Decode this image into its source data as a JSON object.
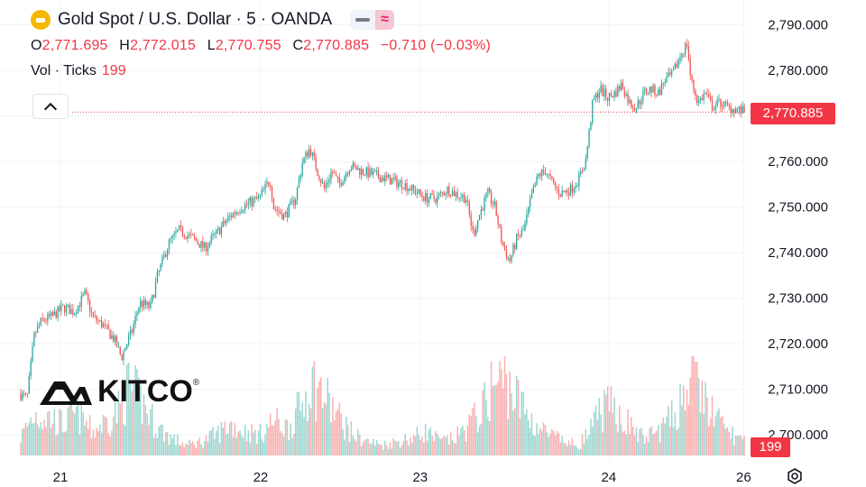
{
  "header": {
    "title": "Gold Spot / U.S. Dollar · 5 · OANDA",
    "ohlc": {
      "o_label": "O",
      "o": "2,771.695",
      "h_label": "H",
      "h": "2,772.015",
      "l_label": "L",
      "l": "2,770.755",
      "c_label": "C",
      "c": "2,770.885",
      "change": "−0.710 (−0.03%)"
    },
    "volume_label": "Vol · Ticks",
    "volume_value": "199"
  },
  "logo": {
    "text": "KITCO",
    "mark": "®"
  },
  "price_tag": "2,770.885",
  "volume_tag": "199",
  "colors": {
    "up": "#26a69a",
    "down": "#ef5350",
    "grid": "#f0f3fa",
    "last": "#f23645"
  },
  "chart_data": {
    "type": "candlestick",
    "title": "Gold Spot / U.S. Dollar · 5 · OANDA",
    "interval": "5 min",
    "ylim": [
      2694.5,
      2793.5
    ],
    "yticks": [
      2700,
      2710,
      2720,
      2730,
      2740,
      2750,
      2760,
      2770,
      2780,
      2790
    ],
    "ytick_labels": [
      "2,700.000",
      "2,710.000",
      "2,720.000",
      "2,730.000",
      "2,740.000",
      "2,750.000",
      "2,760.000",
      "2,770.000",
      "2,780.000",
      "2,790.000"
    ],
    "x_labels": [
      {
        "label": "21",
        "pos": 0.056
      },
      {
        "label": "22",
        "pos": 0.332
      },
      {
        "label": "23",
        "pos": 0.552
      },
      {
        "label": "24",
        "pos": 0.812
      },
      {
        "label": "26",
        "pos": 0.998
      }
    ],
    "last_price": 2770.885,
    "price_path": [
      [
        0.0,
        2709
      ],
      [
        0.01,
        2708
      ],
      [
        0.02,
        2722
      ],
      [
        0.03,
        2725
      ],
      [
        0.045,
        2726
      ],
      [
        0.06,
        2728
      ],
      [
        0.075,
        2727
      ],
      [
        0.09,
        2731
      ],
      [
        0.1,
        2726
      ],
      [
        0.115,
        2724
      ],
      [
        0.13,
        2721
      ],
      [
        0.14,
        2717
      ],
      [
        0.155,
        2723
      ],
      [
        0.165,
        2729
      ],
      [
        0.18,
        2728
      ],
      [
        0.19,
        2735
      ],
      [
        0.205,
        2742
      ],
      [
        0.22,
        2745
      ],
      [
        0.24,
        2743
      ],
      [
        0.255,
        2741
      ],
      [
        0.27,
        2744
      ],
      [
        0.29,
        2748
      ],
      [
        0.305,
        2750
      ],
      [
        0.33,
        2752
      ],
      [
        0.345,
        2756
      ],
      [
        0.35,
        2750
      ],
      [
        0.365,
        2748
      ],
      [
        0.38,
        2752
      ],
      [
        0.39,
        2760
      ],
      [
        0.4,
        2763
      ],
      [
        0.41,
        2758
      ],
      [
        0.42,
        2754
      ],
      [
        0.43,
        2758
      ],
      [
        0.44,
        2755
      ],
      [
        0.455,
        2759
      ],
      [
        0.47,
        2758
      ],
      [
        0.49,
        2757
      ],
      [
        0.51,
        2756
      ],
      [
        0.53,
        2755
      ],
      [
        0.55,
        2753
      ],
      [
        0.56,
        2752
      ],
      [
        0.575,
        2752
      ],
      [
        0.59,
        2754
      ],
      [
        0.6,
        2753
      ],
      [
        0.615,
        2752
      ],
      [
        0.625,
        2744
      ],
      [
        0.635,
        2749
      ],
      [
        0.645,
        2753
      ],
      [
        0.655,
        2750
      ],
      [
        0.665,
        2742
      ],
      [
        0.675,
        2738
      ],
      [
        0.685,
        2743
      ],
      [
        0.695,
        2745
      ],
      [
        0.705,
        2752
      ],
      [
        0.715,
        2757
      ],
      [
        0.725,
        2758
      ],
      [
        0.735,
        2755
      ],
      [
        0.745,
        2753
      ],
      [
        0.76,
        2754
      ],
      [
        0.77,
        2756
      ],
      [
        0.78,
        2760
      ],
      [
        0.79,
        2773
      ],
      [
        0.8,
        2776
      ],
      [
        0.81,
        2774
      ],
      [
        0.82,
        2775
      ],
      [
        0.83,
        2777
      ],
      [
        0.84,
        2773
      ],
      [
        0.85,
        2772
      ],
      [
        0.86,
        2775
      ],
      [
        0.87,
        2776
      ],
      [
        0.88,
        2775
      ],
      [
        0.89,
        2778
      ],
      [
        0.9,
        2779
      ],
      [
        0.91,
        2783
      ],
      [
        0.92,
        2786
      ],
      [
        0.925,
        2778
      ],
      [
        0.935,
        2773
      ],
      [
        0.945,
        2775
      ],
      [
        0.955,
        2772
      ],
      [
        0.965,
        2773
      ],
      [
        0.975,
        2772
      ],
      [
        0.985,
        2771.6
      ],
      [
        1.0,
        2770.885
      ]
    ],
    "volume_max": 130,
    "volume_path": [
      [
        0.0,
        25
      ],
      [
        0.02,
        60
      ],
      [
        0.04,
        55
      ],
      [
        0.06,
        45
      ],
      [
        0.08,
        60
      ],
      [
        0.1,
        35
      ],
      [
        0.12,
        50
      ],
      [
        0.14,
        70
      ],
      [
        0.15,
        100
      ],
      [
        0.17,
        75
      ],
      [
        0.19,
        40
      ],
      [
        0.21,
        25
      ],
      [
        0.23,
        15
      ],
      [
        0.25,
        20
      ],
      [
        0.27,
        30
      ],
      [
        0.29,
        45
      ],
      [
        0.31,
        35
      ],
      [
        0.33,
        30
      ],
      [
        0.35,
        50
      ],
      [
        0.37,
        40
      ],
      [
        0.39,
        75
      ],
      [
        0.4,
        110
      ],
      [
        0.42,
        85
      ],
      [
        0.44,
        55
      ],
      [
        0.46,
        30
      ],
      [
        0.48,
        20
      ],
      [
        0.5,
        15
      ],
      [
        0.52,
        20
      ],
      [
        0.54,
        25
      ],
      [
        0.56,
        35
      ],
      [
        0.58,
        20
      ],
      [
        0.6,
        25
      ],
      [
        0.62,
        45
      ],
      [
        0.64,
        70
      ],
      [
        0.65,
        100
      ],
      [
        0.67,
        110
      ],
      [
        0.69,
        75
      ],
      [
        0.71,
        45
      ],
      [
        0.73,
        30
      ],
      [
        0.75,
        20
      ],
      [
        0.77,
        15
      ],
      [
        0.79,
        40
      ],
      [
        0.8,
        65
      ],
      [
        0.82,
        70
      ],
      [
        0.84,
        45
      ],
      [
        0.86,
        25
      ],
      [
        0.88,
        35
      ],
      [
        0.9,
        55
      ],
      [
        0.915,
        90
      ],
      [
        0.925,
        115
      ],
      [
        0.935,
        100
      ],
      [
        0.95,
        70
      ],
      [
        0.97,
        40
      ],
      [
        0.99,
        25
      ],
      [
        1.0,
        20
      ]
    ]
  }
}
